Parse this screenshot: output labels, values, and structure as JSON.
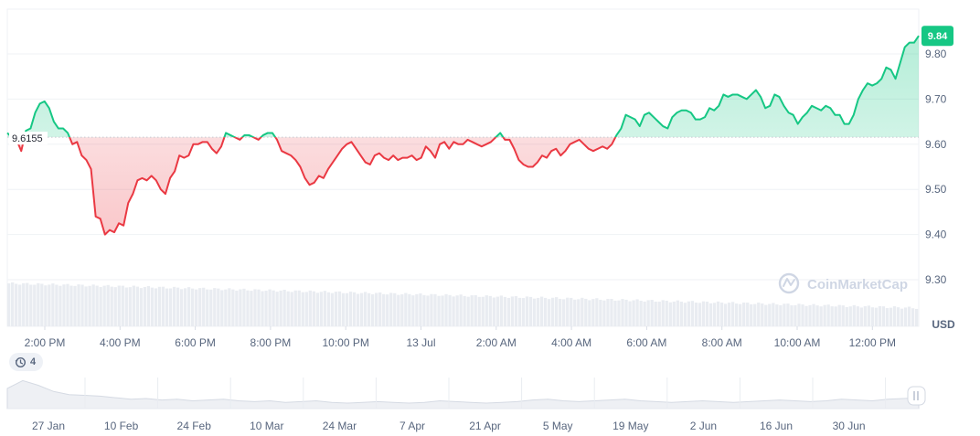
{
  "chart_data": {
    "type": "area",
    "x_labels": [
      "2:00 PM",
      "4:00 PM",
      "6:00 PM",
      "8:00 PM",
      "10:00 PM",
      "13 Jul",
      "2:00 AM",
      "4:00 AM",
      "6:00 AM",
      "8:00 AM",
      "10:00 AM",
      "12:00 PM"
    ],
    "y_ticks": [
      "9.80",
      "9.70",
      "9.60",
      "9.50",
      "9.40",
      "9.30"
    ],
    "ylim": [
      9.25,
      9.85
    ],
    "unit": "USD",
    "reference_value": 9.6155,
    "reference_label": "9.6155",
    "current_value": 9.84,
    "current_label": "9.84",
    "series": [
      {
        "values": [
          9.625,
          9.615,
          9.61,
          9.585,
          9.63,
          9.635,
          9.67,
          9.69,
          9.695,
          9.68,
          9.65,
          9.635,
          9.635,
          9.625,
          9.6,
          9.605,
          9.575,
          9.565,
          9.545,
          9.44,
          9.435,
          9.4,
          9.41,
          9.405,
          9.425,
          9.42,
          9.47,
          9.49,
          9.52,
          9.525,
          9.52,
          9.53,
          9.52,
          9.5,
          9.49,
          9.525,
          9.54,
          9.575,
          9.57,
          9.575,
          9.6,
          9.6,
          9.605,
          9.605,
          9.59,
          9.58,
          9.595,
          9.625,
          9.62,
          9.615,
          9.61,
          9.62,
          9.62,
          9.615,
          9.61,
          9.62,
          9.625,
          9.625,
          9.61,
          9.585,
          9.58,
          9.575,
          9.565,
          9.55,
          9.525,
          9.51,
          9.515,
          9.53,
          9.525,
          9.545,
          9.56,
          9.575,
          9.59,
          9.6,
          9.605,
          9.59,
          9.575,
          9.56,
          9.555,
          9.575,
          9.58,
          9.57,
          9.565,
          9.575,
          9.565,
          9.57,
          9.57,
          9.575,
          9.565,
          9.57,
          9.595,
          9.585,
          9.57,
          9.6,
          9.605,
          9.59,
          9.605,
          9.6,
          9.6,
          9.61,
          9.605,
          9.6,
          9.595,
          9.6,
          9.605,
          9.615,
          9.625,
          9.61,
          9.61,
          9.59,
          9.565,
          9.555,
          9.55,
          9.55,
          9.56,
          9.575,
          9.57,
          9.585,
          9.59,
          9.575,
          9.585,
          9.6,
          9.605,
          9.61,
          9.6,
          9.59,
          9.585,
          9.59,
          9.595,
          9.59,
          9.6,
          9.62,
          9.635,
          9.665,
          9.66,
          9.655,
          9.64,
          9.665,
          9.67,
          9.66,
          9.65,
          9.64,
          9.635,
          9.66,
          9.67,
          9.675,
          9.675,
          9.67,
          9.655,
          9.655,
          9.66,
          9.68,
          9.675,
          9.685,
          9.71,
          9.705,
          9.71,
          9.71,
          9.705,
          9.7,
          9.71,
          9.72,
          9.705,
          9.68,
          9.685,
          9.71,
          9.705,
          9.685,
          9.67,
          9.665,
          9.645,
          9.66,
          9.67,
          9.685,
          9.68,
          9.675,
          9.685,
          9.68,
          9.665,
          9.665,
          9.645,
          9.645,
          9.665,
          9.7,
          9.72,
          9.735,
          9.73,
          9.735,
          9.745,
          9.77,
          9.765,
          9.745,
          9.78,
          9.815,
          9.825,
          9.825,
          9.84
        ]
      }
    ],
    "navigator": {
      "x_labels": [
        "27 Jan",
        "10 Feb",
        "24 Feb",
        "10 Mar",
        "24 Mar",
        "7 Apr",
        "21 Apr",
        "5 May",
        "19 May",
        "2 Jun",
        "16 Jun",
        "30 Jun"
      ],
      "values": [
        9.9,
        10.4,
        10.1,
        9.7,
        9.5,
        9.45,
        9.4,
        9.3,
        9.2,
        9.25,
        9.15,
        9.2,
        9.1,
        9.15,
        9.2,
        9.1,
        9.05,
        9.1,
        9.0,
        9.05,
        9.1,
        9.0,
        8.95,
        9.0,
        9.05,
        9.0,
        8.95,
        9.0,
        9.1,
        9.05,
        9.0,
        8.95,
        9.0,
        9.05,
        9.15,
        9.2,
        9.1,
        9.05,
        9.1,
        9.15,
        9.2,
        9.1,
        9.05,
        9.0,
        9.05,
        9.1,
        9.05,
        9.0,
        9.05,
        9.1,
        9.15,
        9.1,
        9.05,
        9.1,
        9.2,
        9.15,
        9.1,
        9.2,
        9.25,
        9.3
      ]
    },
    "history_count": "4",
    "watermark": "CoinMarketCap",
    "colors": {
      "up": "#16c784",
      "down": "#ea3943",
      "grid": "#eff2f5",
      "volume": "#e9ecf1"
    }
  }
}
